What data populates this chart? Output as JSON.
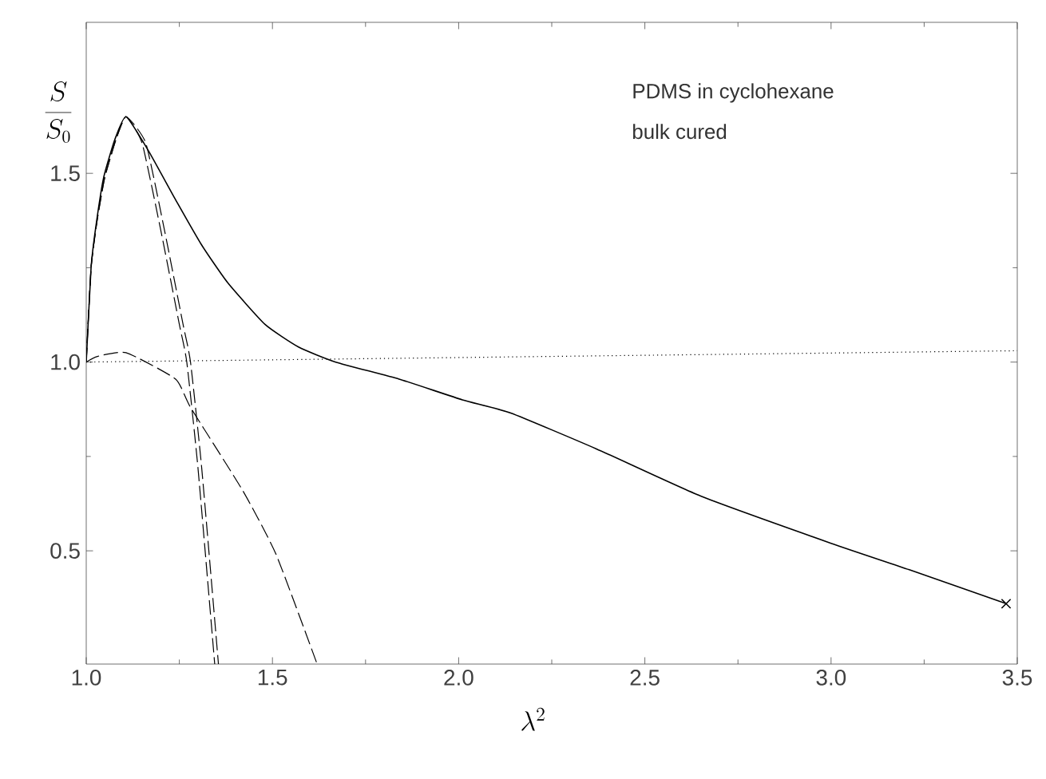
{
  "chart_data": {
    "type": "line",
    "xlabel": "\\lambda^{2}",
    "ylabel": "\\frac{S}{S_{0}}",
    "annotations": [
      "PDMS in cyclohexane",
      "bulk cured"
    ],
    "xlim": [
      1.0,
      3.5
    ],
    "ylim": [
      0.2,
      1.9
    ],
    "xticks": [
      {
        "value": 1.0,
        "label": "1.0"
      },
      {
        "value": 1.5,
        "label": "1.5"
      },
      {
        "value": 2.0,
        "label": "2.0"
      },
      {
        "value": 2.5,
        "label": "2.5"
      },
      {
        "value": 3.0,
        "label": "3.0"
      },
      {
        "value": 3.5,
        "label": "3.5"
      }
    ],
    "yticks": [
      {
        "value": 0.5,
        "label": "0.5"
      },
      {
        "value": 1.0,
        "label": "1.0"
      },
      {
        "value": 1.5,
        "label": "1.5"
      }
    ],
    "series": [
      {
        "color": "#000000",
        "line_style": "solid",
        "x": [
          1.0,
          1.013,
          1.026,
          1.047,
          1.077,
          1.107,
          1.167,
          1.24,
          1.31,
          1.38,
          1.48,
          1.57,
          1.67,
          1.84,
          2.01,
          2.14,
          2.37,
          2.65,
          3.0,
          3.21,
          3.47
        ],
        "values": [
          1.0,
          1.25,
          1.36,
          1.49,
          1.59,
          1.65,
          1.56,
          1.43,
          1.31,
          1.21,
          1.1,
          1.04,
          1.0,
          0.955,
          0.9,
          0.865,
          0.77,
          0.645,
          0.52,
          0.45,
          0.36
        ]
      },
      {
        "color": "#000000",
        "line_style": "dashed",
        "x": [
          1.0,
          1.013,
          1.03,
          1.05,
          1.08,
          1.107,
          1.15,
          1.2,
          1.25,
          1.27,
          1.3,
          1.345
        ],
        "values": [
          1.0,
          1.25,
          1.38,
          1.49,
          1.59,
          1.65,
          1.58,
          1.35,
          1.1,
          1.0,
          0.72,
          0.2
        ]
      },
      {
        "color": "#000000",
        "line_style": "dashed",
        "x": [
          1.0,
          1.013,
          1.03,
          1.05,
          1.08,
          1.107,
          1.16,
          1.21,
          1.26,
          1.28,
          1.31,
          1.355
        ],
        "values": [
          1.0,
          1.25,
          1.38,
          1.49,
          1.59,
          1.65,
          1.58,
          1.35,
          1.1,
          1.0,
          0.72,
          0.2
        ]
      },
      {
        "color": "#000000",
        "line_style": "dashed",
        "x": [
          1.0,
          1.03,
          1.107,
          1.24,
          1.28,
          1.42,
          1.51,
          1.62
        ],
        "values": [
          1.0,
          1.015,
          1.025,
          0.955,
          0.88,
          0.66,
          0.49,
          0.2
        ]
      },
      {
        "color": "#000000",
        "line_style": "dotted",
        "x": [
          1.0,
          3.5
        ],
        "values": [
          1.0,
          1.03
        ]
      },
      {
        "type": "scatter",
        "color": "#000000",
        "marker": "cross",
        "x": [
          3.47
        ],
        "values": [
          0.36
        ]
      }
    ]
  }
}
